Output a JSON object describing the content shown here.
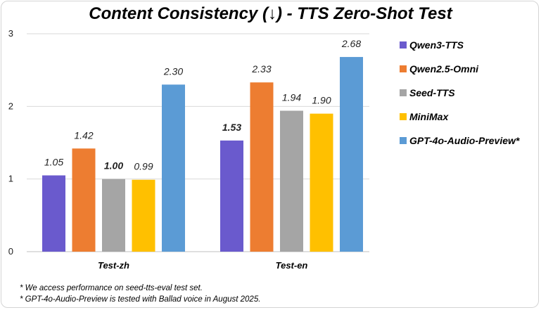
{
  "chart_data": {
    "type": "bar",
    "title": "Content Consistency (↓) - TTS Zero-Shot Test",
    "categories": [
      "Test-zh",
      "Test-en"
    ],
    "series": [
      {
        "name": "Qwen3-TTS",
        "color": "#6A5ACD",
        "values": [
          1.05,
          1.53
        ],
        "labels": [
          "1.05",
          "1.53"
        ]
      },
      {
        "name": "Qwen2.5-Omni",
        "color": "#ED7D31",
        "values": [
          1.42,
          2.33
        ],
        "labels": [
          "1.42",
          "2.33"
        ]
      },
      {
        "name": "Seed-TTS",
        "color": "#A5A5A5",
        "values": [
          1.0,
          1.94
        ],
        "labels": [
          "1.00",
          "1.94"
        ]
      },
      {
        "name": "MiniMax",
        "color": "#FFC000",
        "values": [
          0.99,
          1.9
        ],
        "labels": [
          "0.99",
          "1.90"
        ]
      },
      {
        "name": "GPT-4o-Audio-Preview*",
        "color": "#5B9BD5",
        "values": [
          2.3,
          2.68
        ],
        "labels": [
          "2.30",
          "2.68"
        ]
      }
    ],
    "ylim": [
      0,
      3
    ],
    "yticks": [
      "0",
      "1",
      "2",
      "3"
    ],
    "grid": true,
    "legend": "right",
    "highlight": [
      {
        "category": "Test-en",
        "series": "Qwen3-TTS",
        "color": "#FF0000"
      }
    ],
    "bold_labels": [
      {
        "category": "Test-zh",
        "series": "Seed-TTS"
      }
    ]
  },
  "footnotes": [
    "* We access performance on seed-tts-eval test set.",
    "* GPT-4o-Audio-Preview is tested with Ballad voice in August 2025."
  ]
}
